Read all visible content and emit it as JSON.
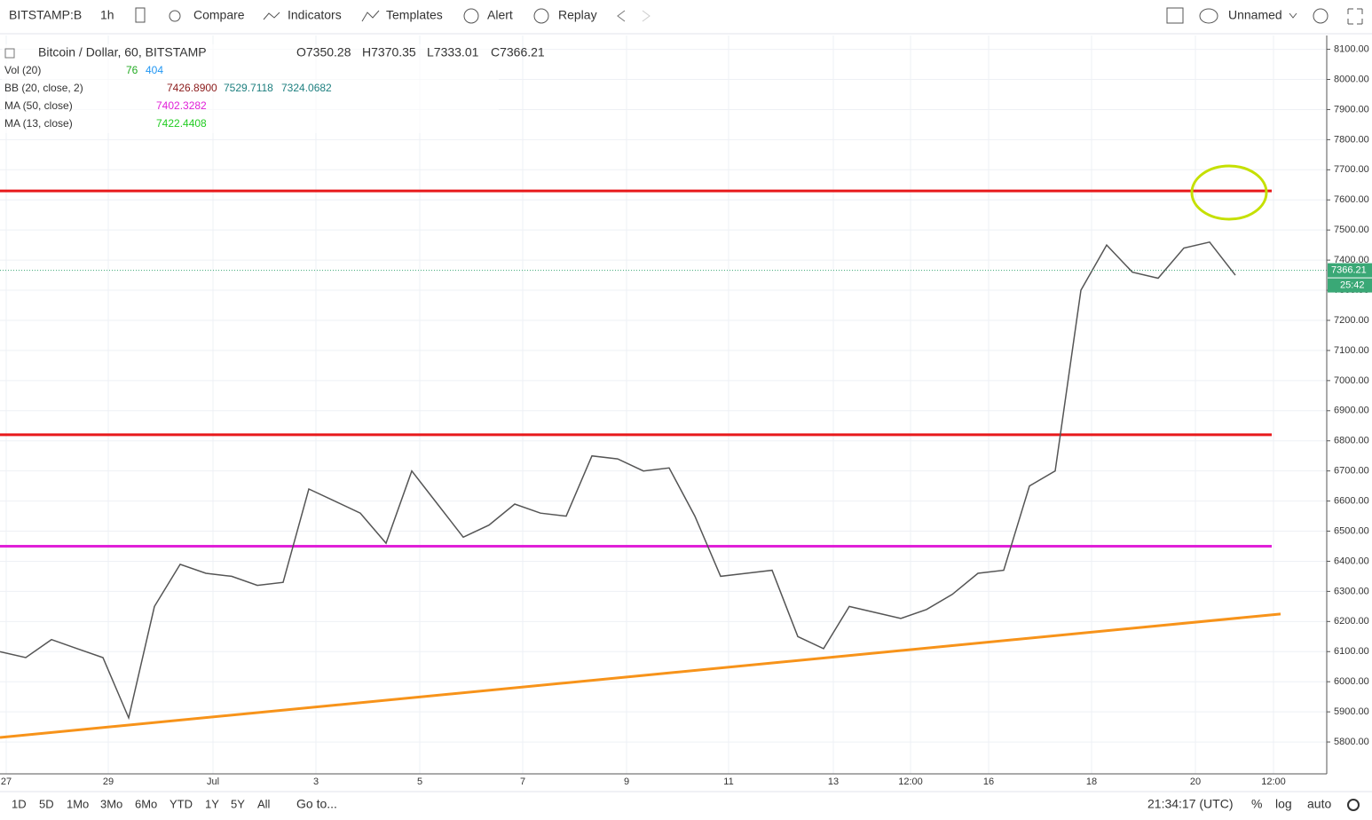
{
  "toolbar": {
    "symbol": "BITSTAMP:B",
    "interval": "1h",
    "compare": "Compare",
    "indicators": "Indicators",
    "templates": "Templates",
    "alert": "Alert",
    "replay": "Replay",
    "layout": "Unnamed"
  },
  "legend": {
    "symbol": "Bitcoin / Dollar, 60, BITSTAMP",
    "open": "O7350.28",
    "high": "H7370.35",
    "low": "L7333.01",
    "close": "C7366.21",
    "vol": {
      "name": "Vol (20)",
      "values": [
        "76",
        "404"
      ]
    },
    "bb": {
      "name": "BB (20, close, 2)",
      "values": [
        "7426.8900",
        "7529.7118",
        "7324.0682"
      ]
    },
    "ma50": {
      "name": "MA (50, close)",
      "value": "7402.3282"
    },
    "ma13": {
      "name": "MA (13, close)",
      "value": "7422.4408"
    }
  },
  "chart_data": {
    "type": "line",
    "ylim": [
      5700,
      8140
    ],
    "yticks": [
      {
        "value": 5800,
        "label": "5800.00"
      },
      {
        "value": 5900,
        "label": "5900.00"
      },
      {
        "value": 6000,
        "label": "6000.00"
      },
      {
        "value": 6100,
        "label": "6100.00"
      },
      {
        "value": 6200,
        "label": "6200.00"
      },
      {
        "value": 6300,
        "label": "6300.00"
      },
      {
        "value": 6400,
        "label": "6400.00"
      },
      {
        "value": 6500,
        "label": "6500.00"
      },
      {
        "value": 6600,
        "label": "6600.00"
      },
      {
        "value": 6700,
        "label": "6700.00"
      },
      {
        "value": 6800,
        "label": "6800.00"
      },
      {
        "value": 6900,
        "label": "6900.00"
      },
      {
        "value": 7000,
        "label": "7000.00"
      },
      {
        "value": 7100,
        "label": "7100.00"
      },
      {
        "value": 7200,
        "label": "7200.00"
      },
      {
        "value": 7300,
        "label": "7300.00"
      },
      {
        "value": 7400,
        "label": "7400.00"
      },
      {
        "value": 7500,
        "label": "7500.00"
      },
      {
        "value": 7600,
        "label": "7600.00"
      },
      {
        "value": 7700,
        "label": "7700.00"
      },
      {
        "value": 7800,
        "label": "7800.00"
      },
      {
        "value": 7900,
        "label": "7900.00"
      },
      {
        "value": 8000,
        "label": "8000.00"
      },
      {
        "value": 8100,
        "label": "8100.00"
      }
    ],
    "xticks": [
      "27",
      "29",
      "Jul",
      "3",
      "5",
      "7",
      "9",
      "11",
      "13",
      "12:00",
      "16",
      "18",
      "20",
      "12:00"
    ],
    "grid": true,
    "series": [
      {
        "color": "#555555",
        "values": [
          6100,
          6080,
          6140,
          6110,
          6080,
          5880,
          6250,
          6390,
          6360,
          6350,
          6320,
          6330,
          6640,
          6600,
          6560,
          6460,
          6700,
          6590,
          6480,
          6520,
          6590,
          6560,
          6550,
          6750,
          6740,
          6700,
          6710,
          6550,
          6350,
          6360,
          6370,
          6150,
          6110,
          6250,
          6230,
          6210,
          6240,
          6290,
          6360,
          6370,
          6650,
          6700,
          7300,
          7450,
          7360,
          7340,
          7440,
          7460,
          7350
        ]
      }
    ],
    "levels": [
      {
        "color": "#e8191b",
        "value": 7630
      },
      {
        "color": "#e8191b",
        "value": 6820
      },
      {
        "color": "#e020d8",
        "value": 6450
      }
    ],
    "trendline": {
      "color": "#f7931a",
      "values": [
        5815,
        6225
      ]
    },
    "last_price": 7366.21,
    "countdown": "25:42"
  },
  "bottom_bar": {
    "ranges": [
      "1D",
      "5D",
      "1Mo",
      "3Mo",
      "6Mo",
      "YTD",
      "1Y",
      "5Y",
      "All"
    ],
    "goto": "Go to...",
    "clock": "21:34:17 (UTC)",
    "percent": "%",
    "log": "log",
    "auto": "auto"
  }
}
